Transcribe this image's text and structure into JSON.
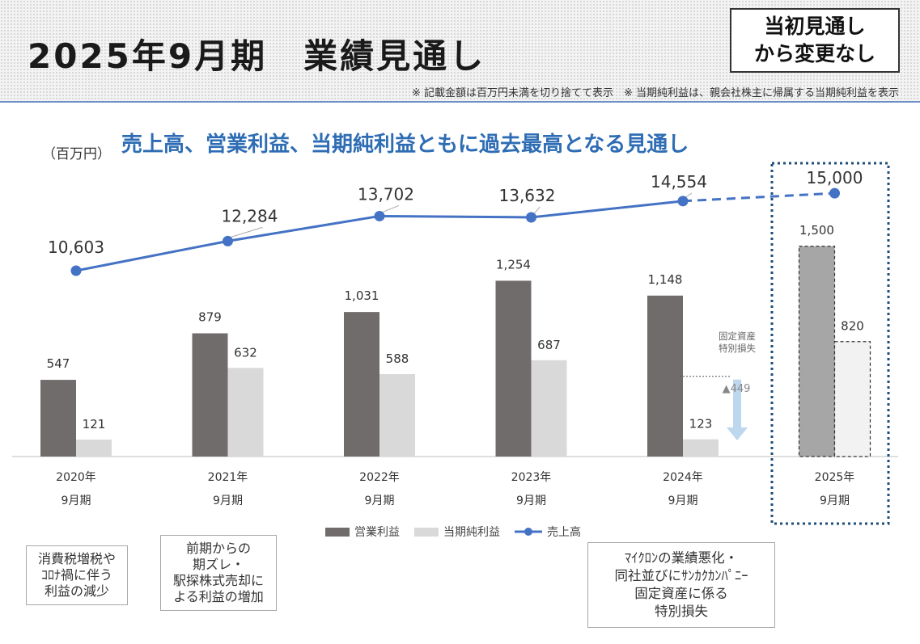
{
  "header": {
    "title": "2025年9月期　業績見通し",
    "badge_line1": "当初見通し",
    "badge_line2": "から変更なし",
    "note": "※ 記載金額は百万円未満を切り捨てて表示　※ 当期純利益は、親会社株主に帰属する当期純利益を表示"
  },
  "unit_label": "（百万円）",
  "headline": "売上高、営業利益、当期純利益ともに過去最高となる見通し",
  "colors": {
    "operating": "#716c6c",
    "net": "#d9d9d9",
    "sales": "#4472c4",
    "highlight": "#1f4e79",
    "arrow": "#bdd7ee"
  },
  "chart_data": {
    "type": "bar",
    "categories": [
      "2020年\n9月期",
      "2021年\n9月期",
      "2022年\n9月期",
      "2023年\n9月期",
      "2024年\n9月期",
      "2025年\n9月期"
    ],
    "category_years": [
      "2020年",
      "2021年",
      "2022年",
      "2023年",
      "2024年",
      "2025年"
    ],
    "category_period": "9月期",
    "series": [
      {
        "name": "営業利益",
        "type": "bar",
        "values": [
          547,
          879,
          1031,
          1254,
          1148,
          1500
        ],
        "labels": [
          "547",
          "879",
          "1,031",
          "1,254",
          "1,148",
          "1,500"
        ]
      },
      {
        "name": "当期純利益",
        "type": "bar",
        "values": [
          121,
          632,
          588,
          687,
          123,
          820
        ],
        "labels": [
          "121",
          "632",
          "588",
          "687",
          "123",
          "820"
        ]
      },
      {
        "name": "売上高",
        "type": "line",
        "values": [
          10603,
          12284,
          13702,
          13632,
          14554,
          15000
        ],
        "labels": [
          "10,603",
          "12,284",
          "13,702",
          "13,632",
          "14,554",
          "15,000"
        ]
      }
    ],
    "forecast_index": 5,
    "legend_position": "bottom",
    "annotation": {
      "title_line1": "固定資産",
      "title_line2": "特別損失",
      "value": "▲449",
      "category_index": 4
    }
  },
  "notes": [
    {
      "lines": [
        "消費税増税や",
        "ｺﾛﾅ禍に伴う",
        "利益の減少"
      ]
    },
    {
      "lines": [
        "前期からの",
        "期ズレ・",
        "駅探株式売却に",
        "よる利益の増加"
      ]
    },
    {
      "lines": [
        "ﾏｲｸﾛﾝの業績悪化・",
        "同社並びにｻﾝｶｸｶﾝﾊﾟﾆｰ",
        "固定資産に係る",
        "特別損失"
      ]
    }
  ]
}
